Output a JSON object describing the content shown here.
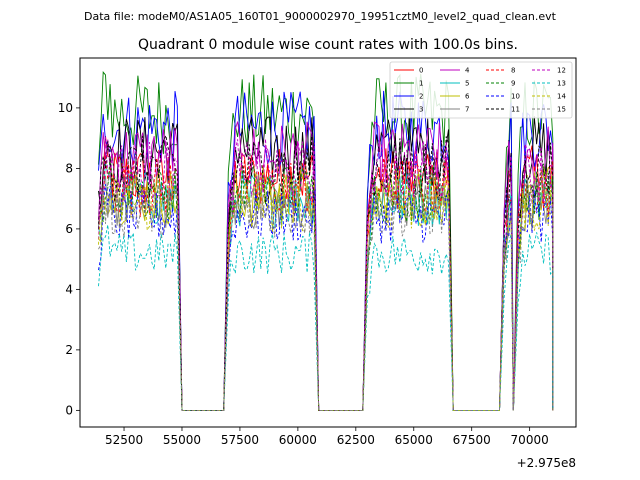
{
  "figure": {
    "suptitle": "Data file: modeM0/AS1A05_160T01_9000002970_19951cztM0_level2_quad_clean.evt",
    "title": "Quadrant 0 module wise count rates with 100.0s bins."
  },
  "chart_data": {
    "type": "line",
    "title": "Quadrant 0 module wise count rates with 100.0s bins.",
    "xlabel": "",
    "ylabel": "",
    "x_offset_label": "+2.975e8",
    "xlim": [
      50600,
      72000
    ],
    "ylim": [
      -0.55,
      11.65
    ],
    "xticks": [
      52500,
      55000,
      57500,
      60000,
      62500,
      65000,
      67500,
      70000
    ],
    "yticks": [
      0,
      2,
      4,
      6,
      8,
      10
    ],
    "x_tick_labels": [
      "52500",
      "55000",
      "57500",
      "60000",
      "62500",
      "65000",
      "67500",
      "70000"
    ],
    "y_tick_labels": [
      "0",
      "2",
      "4",
      "6",
      "8",
      "10"
    ],
    "legend_location": "upper right",
    "segments": [
      {
        "start": 51400,
        "end": 54800,
        "down_end": 55000
      },
      {
        "start": 57000,
        "end": 60700,
        "down_end": 60900
      },
      {
        "start": 63000,
        "end": 66500,
        "down_end": 66700
      },
      {
        "start": 68900,
        "end": 69200,
        "down_end": 69300
      },
      {
        "start": 69500,
        "end": 71000,
        "down_end": 71000
      }
    ],
    "series": [
      {
        "name": "0",
        "color": "#ff0000",
        "dash": "solid",
        "level": 7.7
      },
      {
        "name": "1",
        "color": "#008000",
        "dash": "solid",
        "level": 9.8
      },
      {
        "name": "2",
        "color": "#0000ff",
        "dash": "solid",
        "level": 9.3
      },
      {
        "name": "3",
        "color": "#000000",
        "dash": "solid",
        "level": 8.6
      },
      {
        "name": "4",
        "color": "#bf00bf",
        "dash": "solid",
        "level": 8.4
      },
      {
        "name": "5",
        "color": "#00bfbf",
        "dash": "solid",
        "level": 7.0
      },
      {
        "name": "6",
        "color": "#bfbf00",
        "dash": "solid",
        "level": 7.1
      },
      {
        "name": "7",
        "color": "#808080",
        "dash": "solid",
        "level": 6.9
      },
      {
        "name": "8",
        "color": "#ff0000",
        "dash": "dashed",
        "level": 7.4
      },
      {
        "name": "9",
        "color": "#008000",
        "dash": "dashed",
        "level": 7.2
      },
      {
        "name": "10",
        "color": "#0000ff",
        "dash": "dashed",
        "level": 6.4
      },
      {
        "name": "11",
        "color": "#000000",
        "dash": "dashed",
        "level": 8.0
      },
      {
        "name": "12",
        "color": "#bf00bf",
        "dash": "dashed",
        "level": 7.9
      },
      {
        "name": "13",
        "color": "#00bfbf",
        "dash": "dashed",
        "level": 5.2
      },
      {
        "name": "14",
        "color": "#bfbf00",
        "dash": "dashed",
        "level": 6.8
      },
      {
        "name": "15",
        "color": "#808080",
        "dash": "dashed",
        "level": 6.6
      }
    ]
  }
}
